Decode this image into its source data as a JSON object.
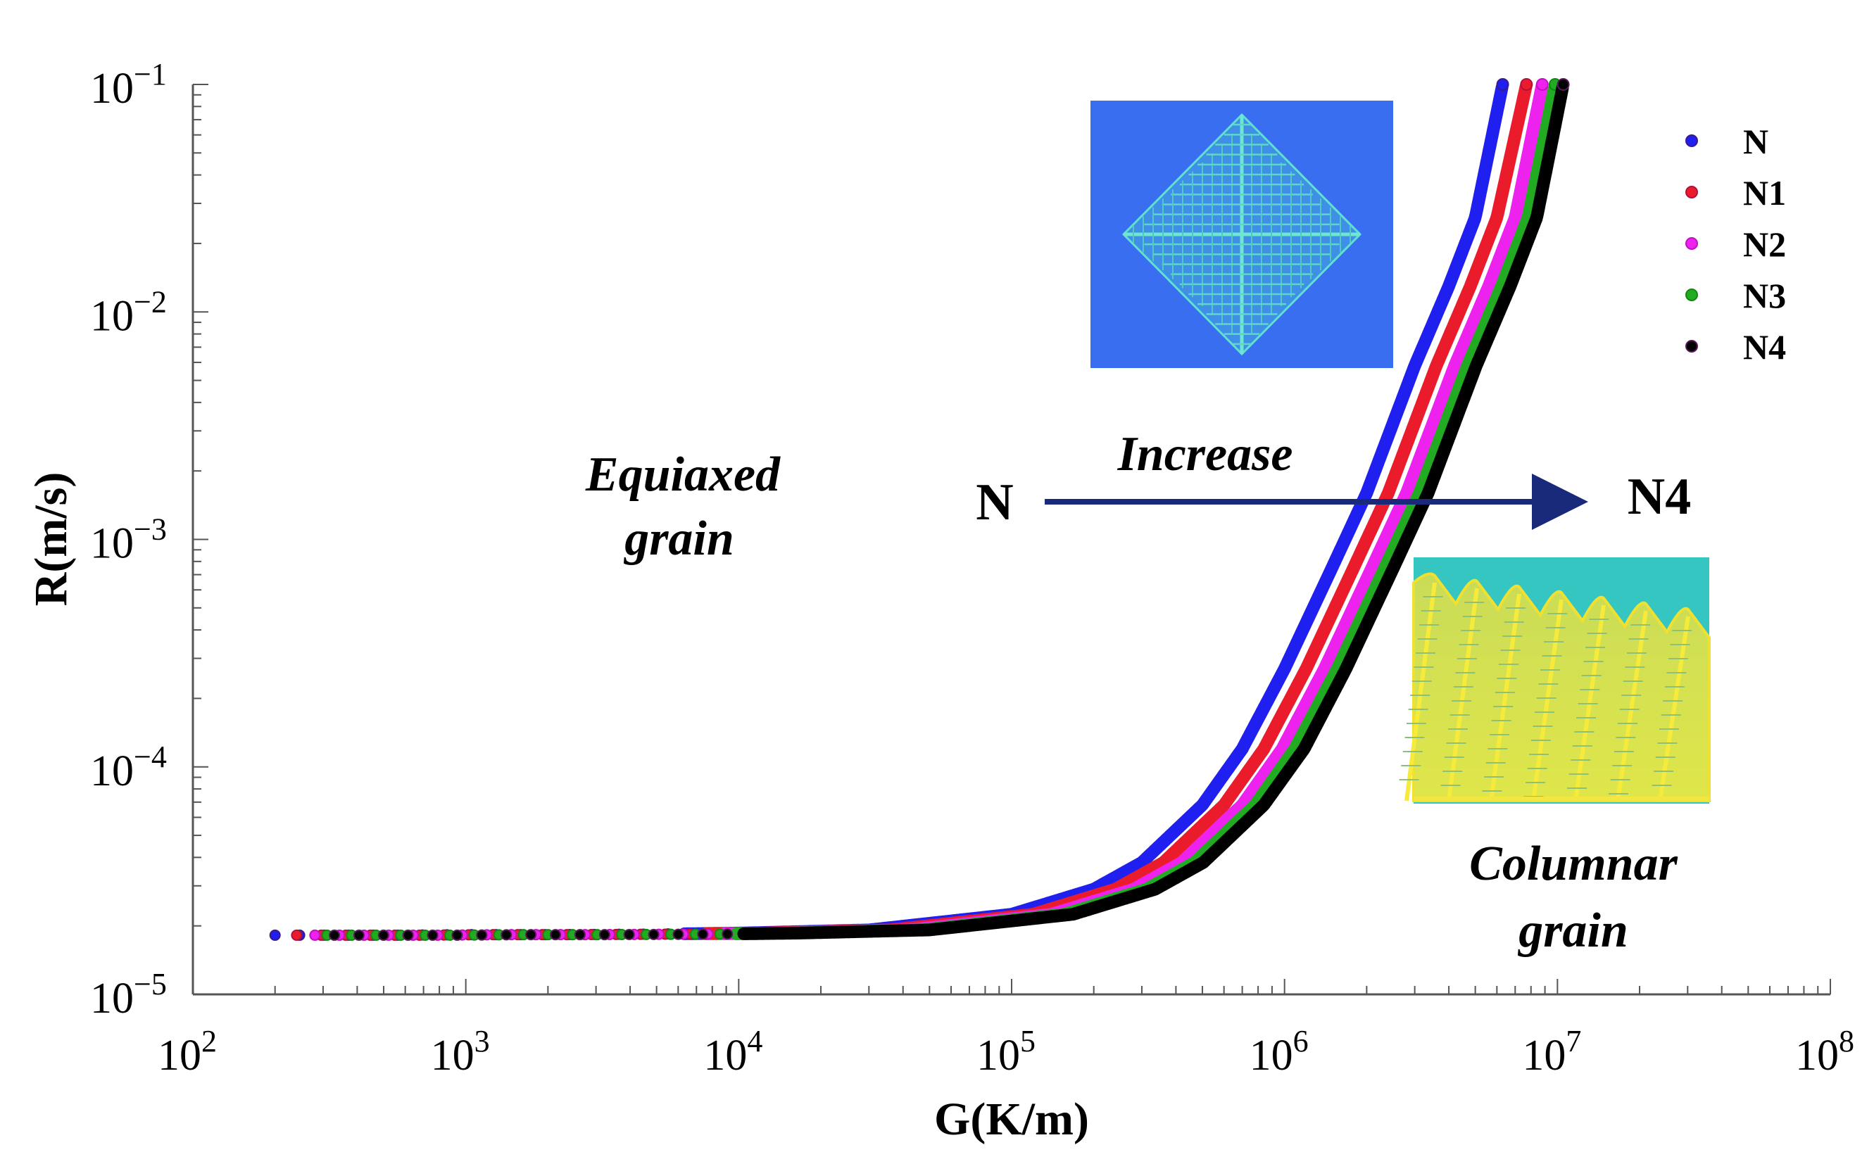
{
  "chart_data": {
    "type": "scatter",
    "title": "",
    "xlabel": "G(K/m)",
    "ylabel": "R(m/s)",
    "x_scale": "log",
    "y_scale": "log",
    "xlim": [
      100,
      100000000
    ],
    "ylim": [
      1e-05,
      0.1
    ],
    "x_ticks": [
      {
        "value": 100,
        "base": "10",
        "exp": "2"
      },
      {
        "value": 1000,
        "base": "10",
        "exp": "3"
      },
      {
        "value": 10000,
        "base": "10",
        "exp": "4"
      },
      {
        "value": 100000,
        "base": "10",
        "exp": "5"
      },
      {
        "value": 1000000,
        "base": "10",
        "exp": "6"
      },
      {
        "value": 10000000,
        "base": "10",
        "exp": "7"
      },
      {
        "value": 100000000,
        "base": "10",
        "exp": "8"
      }
    ],
    "y_ticks": [
      {
        "value": 0.1,
        "base": "10",
        "exp": "−1"
      },
      {
        "value": 0.01,
        "base": "10",
        "exp": "−2"
      },
      {
        "value": 0.001,
        "base": "10",
        "exp": "−3"
      },
      {
        "value": 0.0001,
        "base": "10",
        "exp": "−4"
      },
      {
        "value": 1e-05,
        "base": "10",
        "exp": "−5"
      }
    ],
    "grid": false,
    "legend_position": "top-right",
    "series": [
      {
        "name": "N",
        "color": "#1f1ff0",
        "marker_edge": "#3a1a8a",
        "x": [
          200,
          560,
          1000,
          2000,
          5000,
          10000,
          30000,
          100000,
          200000,
          300000,
          500000,
          700000,
          1000000,
          1500000,
          2000000,
          3000000,
          4000000,
          5000000,
          6300000
        ],
        "y": [
          1.82e-05,
          1.82e-05,
          1.83e-05,
          1.83e-05,
          1.84e-05,
          1.86e-05,
          1.92e-05,
          2.25e-05,
          2.9e-05,
          3.8e-05,
          6.8e-05,
          0.00012,
          0.00027,
          0.00076,
          0.0016,
          0.0058,
          0.013,
          0.026,
          0.1
        ]
      },
      {
        "name": "N1",
        "color": "#ea1c2c",
        "marker_edge": "#b01040",
        "x": [
          240,
          680,
          1200,
          2400,
          6000,
          12000,
          36000,
          120000,
          240000,
          360000,
          600000,
          840000,
          1200000,
          1800000,
          2400000,
          3600000,
          4800000,
          6000000,
          7700000
        ],
        "y": [
          1.82e-05,
          1.82e-05,
          1.83e-05,
          1.83e-05,
          1.84e-05,
          1.86e-05,
          1.92e-05,
          2.25e-05,
          2.9e-05,
          3.8e-05,
          6.8e-05,
          0.00012,
          0.00027,
          0.00076,
          0.0016,
          0.0058,
          0.013,
          0.026,
          0.1
        ]
      },
      {
        "name": "N2",
        "color": "#ee22ee",
        "marker_edge": "#c010c0",
        "x": [
          280,
          780,
          1400,
          2800,
          7000,
          14000,
          42000,
          140000,
          280000,
          420000,
          700000,
          980000,
          1400000,
          2100000,
          2800000,
          4200000,
          5600000,
          7000000,
          8800000
        ],
        "y": [
          1.82e-05,
          1.82e-05,
          1.83e-05,
          1.83e-05,
          1.84e-05,
          1.86e-05,
          1.92e-05,
          2.25e-05,
          2.9e-05,
          3.8e-05,
          6.8e-05,
          0.00012,
          0.00027,
          0.00076,
          0.0016,
          0.0058,
          0.013,
          0.026,
          0.1
        ]
      },
      {
        "name": "N3",
        "color": "#22aa22",
        "marker_edge": "#118811",
        "x": [
          310,
          880,
          1560,
          3100,
          7800,
          15600,
          47000,
          156000,
          312000,
          468000,
          780000,
          1090000,
          1560000,
          2340000,
          3120000,
          4680000,
          6240000,
          7800000,
          9800000
        ],
        "y": [
          1.82e-05,
          1.82e-05,
          1.83e-05,
          1.83e-05,
          1.84e-05,
          1.86e-05,
          1.92e-05,
          2.25e-05,
          2.9e-05,
          3.8e-05,
          6.8e-05,
          0.00012,
          0.00027,
          0.00076,
          0.0016,
          0.0058,
          0.013,
          0.026,
          0.1
        ]
      },
      {
        "name": "N4",
        "color": "#000000",
        "marker_edge": "#5a1a5a",
        "x": [
          330,
          940,
          1680,
          3350,
          8400,
          16800,
          50000,
          168000,
          336000,
          504000,
          840000,
          1180000,
          1680000,
          2520000,
          3360000,
          5040000,
          6720000,
          8400000,
          10500000
        ],
        "y": [
          1.82e-05,
          1.82e-05,
          1.83e-05,
          1.83e-05,
          1.84e-05,
          1.86e-05,
          1.92e-05,
          2.25e-05,
          2.9e-05,
          3.8e-05,
          6.8e-05,
          0.00012,
          0.00027,
          0.00076,
          0.0016,
          0.0058,
          0.013,
          0.026,
          0.1
        ]
      }
    ],
    "annotations": {
      "equiaxed_line1": "Equiaxed",
      "equiaxed_line2": "grain",
      "columnar_line1": "Columnar",
      "columnar_line2": "grain",
      "increase": "Increase",
      "arrow_start": "N",
      "arrow_end": "N4"
    },
    "insets": [
      {
        "description_name": "equiaxed-dendrite-inset",
        "background": "#3a6ef0",
        "crystal_color": "#4fd0d0"
      },
      {
        "description_name": "columnar-dendrite-inset",
        "background": "#35c4c0",
        "crystal_color": "#d8e040"
      }
    ],
    "arrow_color": "#1a2a7a"
  }
}
